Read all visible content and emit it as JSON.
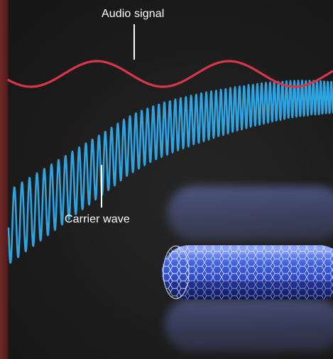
{
  "labels": {
    "audio_signal": "Audio signal",
    "carrier_wave": "Carrier wave"
  },
  "colors": {
    "audio_signal": "#d9354a",
    "carrier_wave": "#2fa3df",
    "nanotube": "#4b6ff0",
    "background": "#1b1b1b",
    "edge_strip": "#5a1f1f"
  }
}
